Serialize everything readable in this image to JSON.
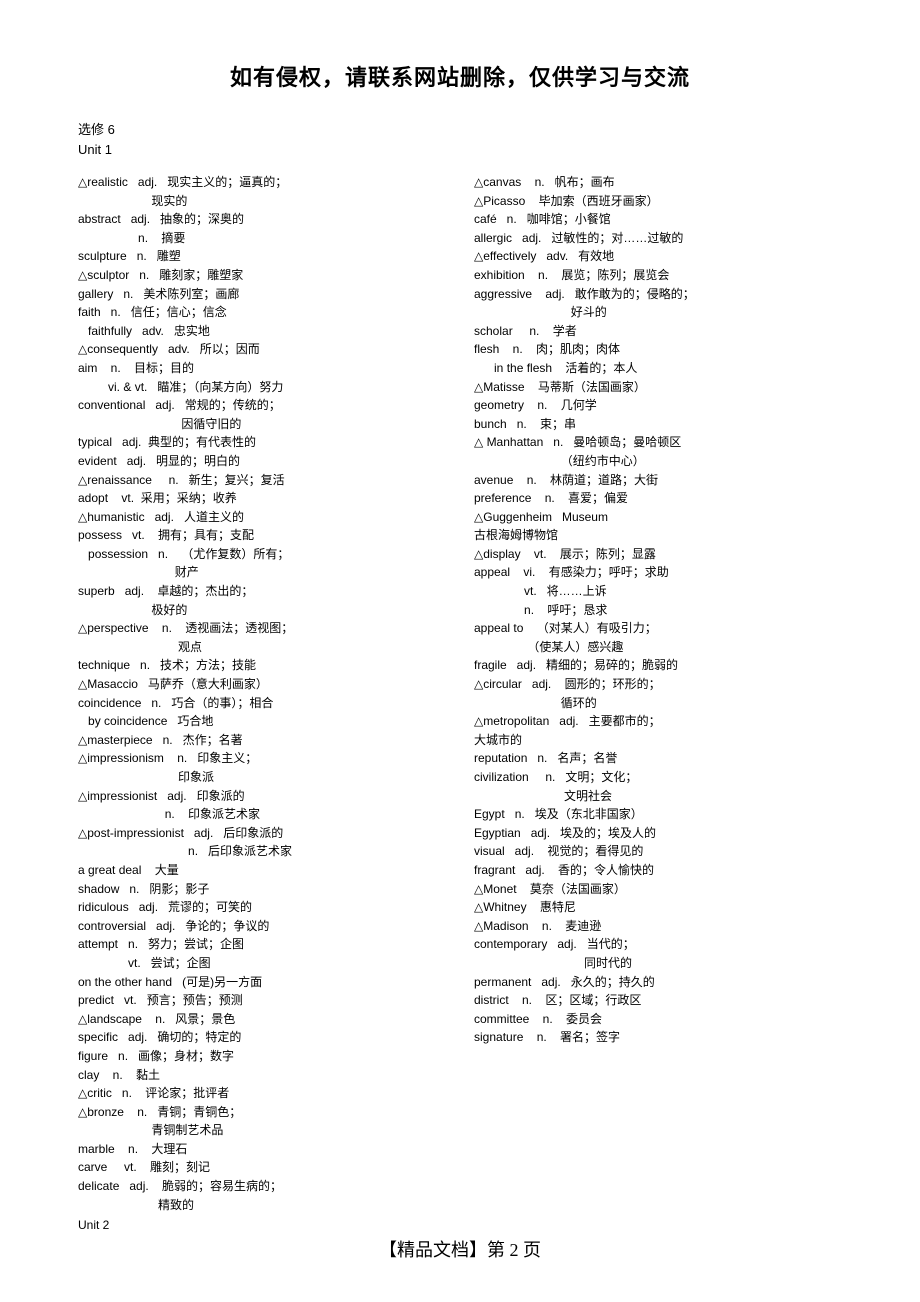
{
  "header": "如有侵权，请联系网站删除，仅供学习与交流",
  "book": "选修 6",
  "unit1": "Unit 1",
  "unit2": "Unit 2",
  "footer": "【精品文档】第 2 页",
  "left": [
    "△realistic   adj.   现实主义的；逼真的；",
    "                      现实的",
    "abstract   adj.   抽象的；深奥的",
    "                  n.    摘要",
    "sculpture   n.   雕塑",
    "△sculptor   n.   雕刻家；雕塑家",
    "gallery   n.   美术陈列室；画廊",
    "faith   n.   信任；信心；信念",
    "   faithfully   adv.   忠实地",
    "△consequently   adv.   所以；因而",
    "aim    n.    目标；目的",
    "         vi. & vt.   瞄准；（向某方向）努力",
    "conventional   adj.   常规的；传统的；",
    "                               因循守旧的",
    "typical   adj.  典型的；有代表性的",
    "evident   adj.   明显的；明白的",
    "△renaissance     n.   新生；复兴；复活",
    "adopt    vt.  采用；采纳；收养",
    "△humanistic   adj.   人道主义的",
    "possess   vt.    拥有；具有；支配",
    "   possession   n.    （尤作复数）所有；",
    "                             财产",
    "superb   adj.    卓越的；杰出的；",
    "                      极好的",
    "△perspective    n.    透视画法；透视图；",
    "                              观点",
    "technique   n.   技术；方法；技能",
    "△Masaccio   马萨乔（意大利画家）",
    "coincidence   n.   巧合（的事）；相合",
    "   by coincidence   巧合地",
    "△masterpiece   n.   杰作；名著",
    "△impressionism    n.   印象主义；",
    "                              印象派",
    "△impressionist   adj.   印象派的",
    "                          n.    印象派艺术家",
    "△post-impressionist   adj.   后印象派的",
    "                                 n.   后印象派艺术家",
    "a great deal    大量",
    "shadow   n.   阴影；影子",
    "ridiculous   adj.   荒谬的；可笑的",
    "controversial   adj.   争论的；争议的",
    "attempt   n.   努力；尝试；企图",
    "               vt.   尝试；企图",
    "on the other hand   (可是)另一方面",
    "predict   vt.   预言；预告；预测",
    "△landscape    n.   风景；景色",
    "specific   adj.   确切的；特定的",
    "figure   n.   画像；身材；数字",
    "clay    n.    黏土",
    "△critic   n.    评论家；批评者",
    "△bronze    n.   青铜；青铜色；",
    "                      青铜制艺术品",
    "marble    n.    大理石",
    "carve     vt.    雕刻；刻记",
    "delicate   adj.    脆弱的；容易生病的；",
    "                        精致的"
  ],
  "right": [
    "△canvas    n.   帆布；画布",
    "△Picasso    毕加索（西班牙画家）",
    "café   n.   咖啡馆；小餐馆",
    "allergic   adj.   过敏性的；对……过敏的",
    "△effectively   adv.   有效地",
    "exhibition    n.    展览；陈列；展览会",
    "aggressive    adj.   敢作敢为的；侵略的；",
    "                             好斗的",
    "scholar     n.    学者",
    "flesh    n.    肉；肌肉；肉体",
    "      in the flesh    活着的；本人",
    "△Matisse    马蒂斯（法国画家）",
    "geometry    n.    几何学",
    "bunch   n.    束；串",
    "△ Manhattan   n.   曼哈顿岛；曼哈顿区",
    "                          （纽约市中心）",
    "avenue    n.    林荫道；道路；大街",
    "preference    n.    喜爱；偏爱",
    "△Guggenheim   Museum",
    "古根海姆博物馆",
    "△display    vt.    展示；陈列；显露",
    "appeal    vi.    有感染力；呼吁；求助",
    "               vt.   将……上诉",
    "               n.    呼吁；恳求",
    "appeal to    （对某人）有吸引力；",
    "                （使某人）感兴趣",
    "fragile   adj.   精细的；易碎的；脆弱的",
    "△circular   adj.    圆形的；环形的；",
    "                          循环的",
    "△metropolitan   adj.   主要都市的；",
    "大城市的",
    "reputation   n.   名声；名誉",
    "civilization     n.   文明；文化；",
    "                           文明社会",
    "Egypt   n.   埃及（东北非国家）",
    "Egyptian   adj.   埃及的；埃及人的",
    "visual   adj.    视觉的；看得见的",
    "fragrant   adj.    香的；令人愉快的",
    "△Monet    莫奈（法国画家）",
    "△Whitney    惠特尼",
    "△Madison    n.    麦迪逊",
    "contemporary   adj.   当代的；",
    "                                 同时代的",
    "permanent   adj.   永久的；持久的",
    "district    n.    区；区域；行政区",
    "committee    n.    委员会",
    "signature    n.    署名；签字"
  ]
}
